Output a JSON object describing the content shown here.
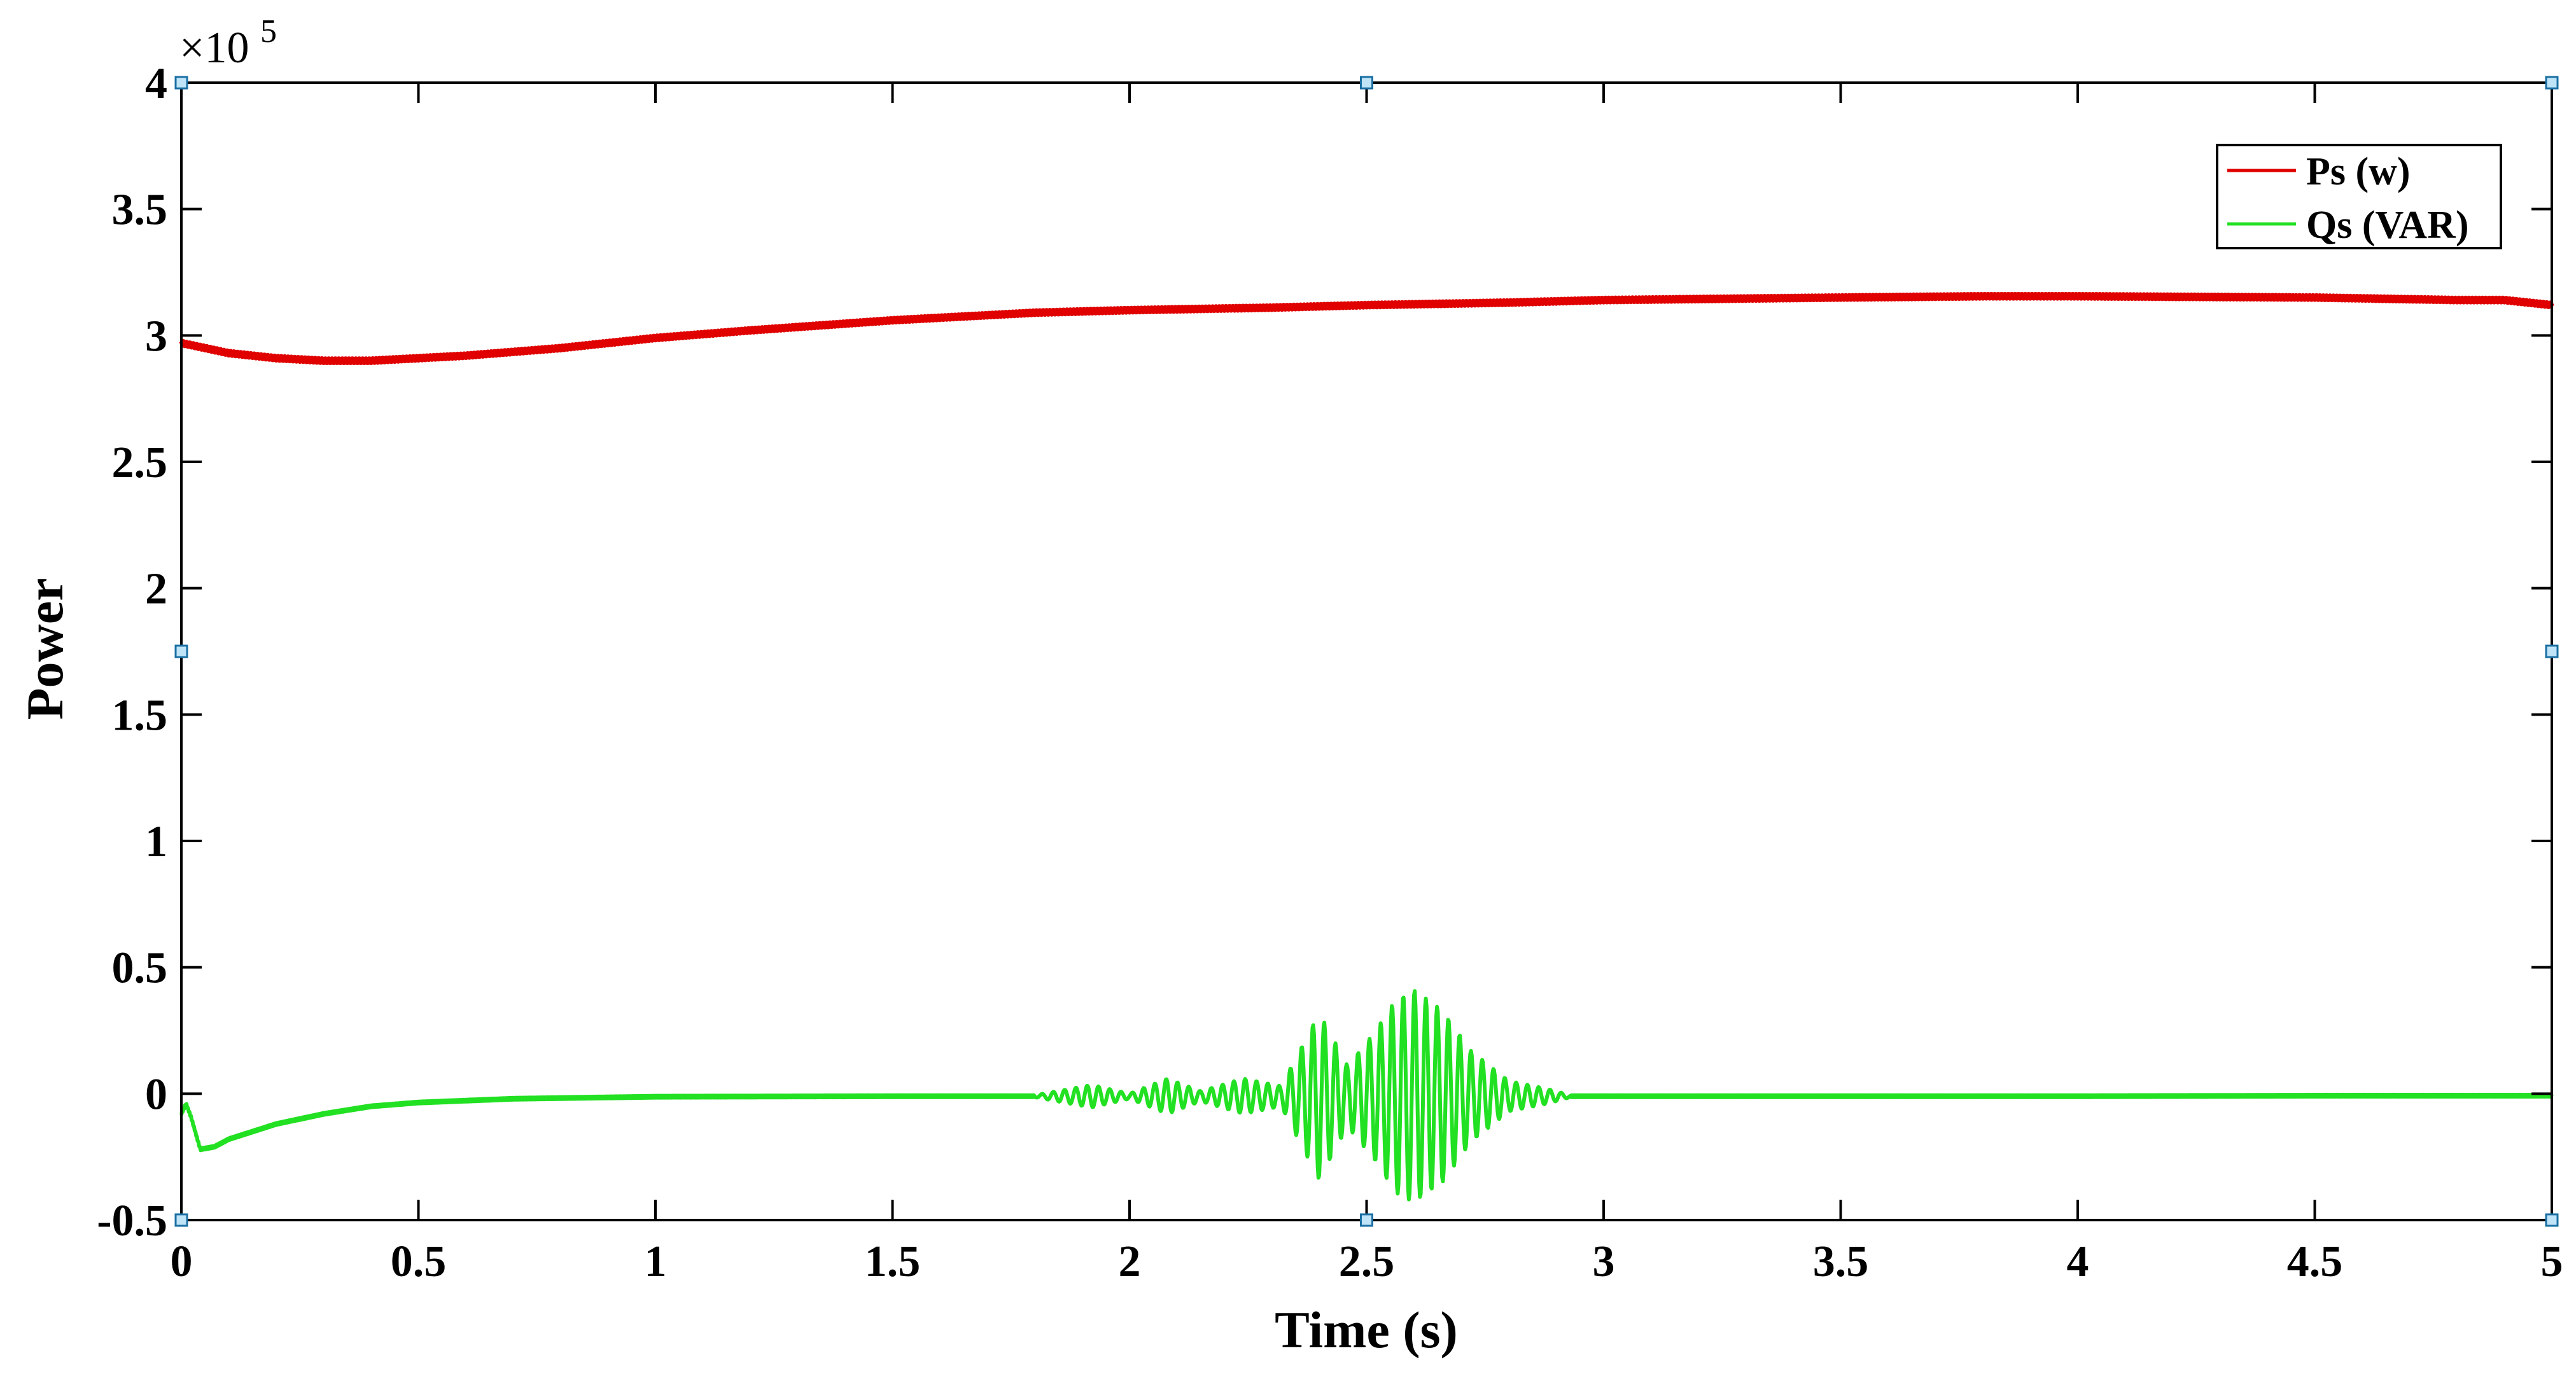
{
  "chart_data": {
    "type": "line",
    "xlabel": "Time (s)",
    "ylabel": "Power",
    "y_multiplier": {
      "base": "×10",
      "exponent": "5"
    },
    "xlim": [
      0,
      5
    ],
    "ylim": [
      -0.5,
      4
    ],
    "x_ticks": [
      0,
      0.5,
      1,
      1.5,
      2,
      2.5,
      3,
      3.5,
      4,
      4.5,
      5
    ],
    "x_tick_labels": [
      "0",
      "0.5",
      "1",
      "1.5",
      "2",
      "2.5",
      "3",
      "3.5",
      "4",
      "4.5",
      "5"
    ],
    "y_ticks": [
      -0.5,
      0,
      0.5,
      1,
      1.5,
      2,
      2.5,
      3,
      3.5,
      4
    ],
    "y_tick_labels": [
      "-0.5",
      "0",
      "0.5",
      "1",
      "1.5",
      "2",
      "2.5",
      "3",
      "3.5",
      "4"
    ],
    "grid": false,
    "legend_position": "top-right",
    "series": [
      {
        "name": "Ps (w)",
        "color": "#e00000",
        "x": [
          0,
          0.05,
          0.1,
          0.2,
          0.3,
          0.4,
          0.5,
          0.6,
          0.8,
          1,
          1.2,
          1.5,
          1.8,
          2,
          2.3,
          2.5,
          2.8,
          3,
          3.5,
          3.8,
          4,
          4.5,
          4.8,
          4.9,
          5
        ],
        "y": [
          2.97,
          2.95,
          2.93,
          2.91,
          2.9,
          2.9,
          2.91,
          2.92,
          2.95,
          2.99,
          3.02,
          3.06,
          3.09,
          3.1,
          3.11,
          3.12,
          3.13,
          3.14,
          3.15,
          3.155,
          3.155,
          3.15,
          3.14,
          3.14,
          3.12
        ]
      },
      {
        "name": "Qs (VAR)",
        "color": "#22e022",
        "x": [
          0,
          0.01,
          0.02,
          0.04,
          0.07,
          0.1,
          0.15,
          0.2,
          0.3,
          0.4,
          0.5,
          0.7,
          1,
          1.5,
          1.79,
          2.93,
          3,
          3.5,
          4,
          4.5,
          5
        ],
        "y": [
          -0.08,
          -0.04,
          -0.09,
          -0.22,
          -0.21,
          -0.18,
          -0.15,
          -0.12,
          -0.08,
          -0.05,
          -0.035,
          -0.02,
          -0.012,
          -0.01,
          -0.01,
          -0.01,
          -0.01,
          -0.01,
          -0.01,
          -0.008,
          -0.008
        ],
        "oscillation_region": [
          1.8,
          2.93
        ],
        "oscillation_peak_min": -0.42,
        "oscillation_peak_max": 0.42
      }
    ]
  }
}
